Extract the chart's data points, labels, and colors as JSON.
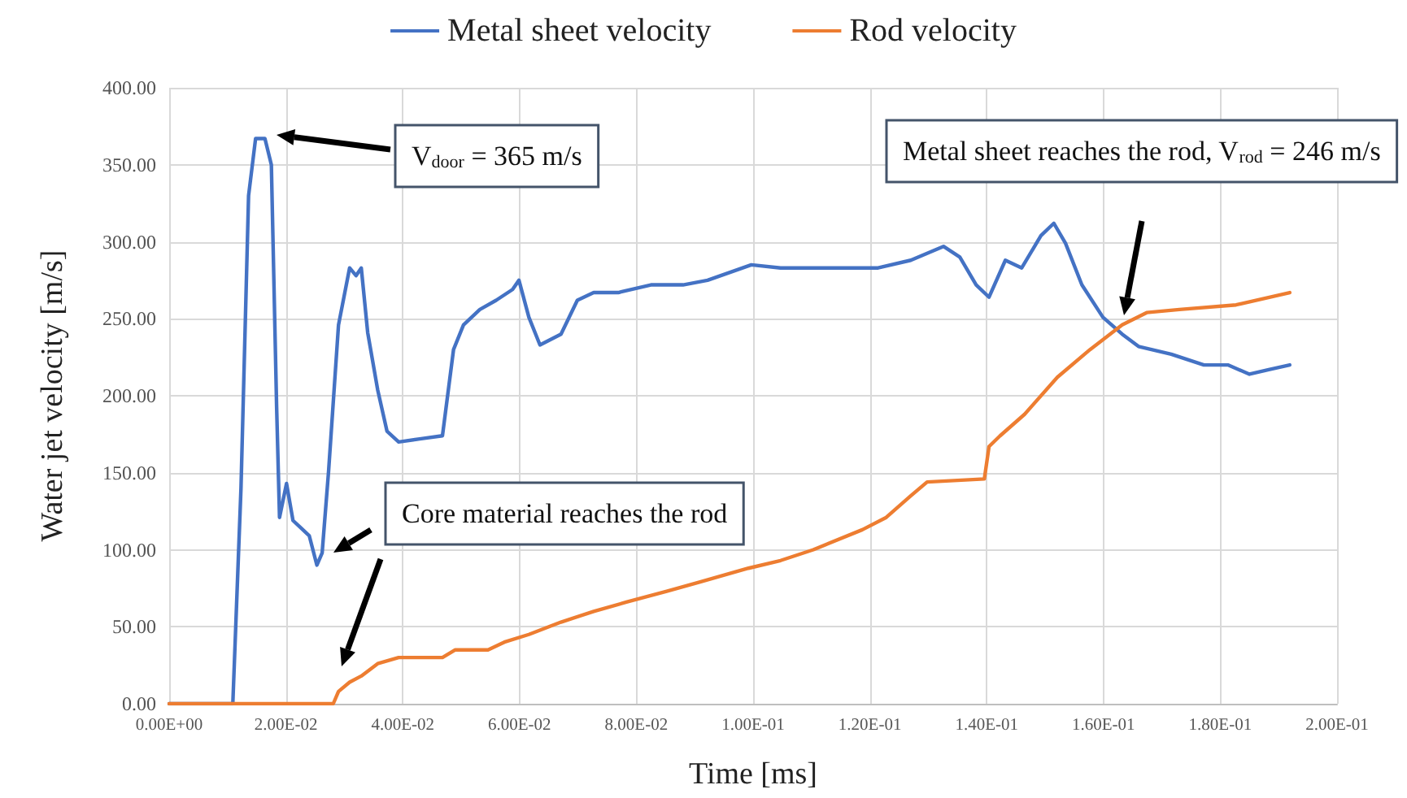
{
  "chart_data": {
    "type": "line",
    "xlabel": "Time [ms]",
    "ylabel": "Water jet velocity [m/s]",
    "legend": "top",
    "grid": true,
    "marker": "none",
    "line_style": "solid",
    "xlim": [
      0,
      0.2
    ],
    "xticks": [
      {
        "value": 0,
        "label": "0.00E+00"
      },
      {
        "value": 0.02,
        "label": "2.00E-02"
      },
      {
        "value": 0.04,
        "label": "4.00E-02"
      },
      {
        "value": 0.06,
        "label": "6.00E-02"
      },
      {
        "value": 0.08,
        "label": "8.00E-02"
      },
      {
        "value": 0.1,
        "label": "1.00E-01"
      },
      {
        "value": 0.12,
        "label": "1.20E-01"
      },
      {
        "value": 0.14,
        "label": "1.40E-01"
      },
      {
        "value": 0.16,
        "label": "1.60E-01"
      },
      {
        "value": 0.18,
        "label": "1.80E-01"
      },
      {
        "value": 0.2,
        "label": "2.00E-01"
      }
    ],
    "ylim": [
      0,
      400
    ],
    "yticks": [
      {
        "value": 0,
        "label": "0.00"
      },
      {
        "value": 50,
        "label": "50.00"
      },
      {
        "value": 100,
        "label": "100.00"
      },
      {
        "value": 150,
        "label": "150.00"
      },
      {
        "value": 200,
        "label": "200.00"
      },
      {
        "value": 250,
        "label": "250.00"
      },
      {
        "value": 300,
        "label": "300.00"
      },
      {
        "value": 350,
        "label": "350.00"
      },
      {
        "value": 400,
        "label": "400.00"
      }
    ],
    "series": [
      {
        "name": "Metal sheet velocity",
        "color": "#4472c4",
        "x": [
          0,
          0.0109,
          0.0123,
          0.0136,
          0.0148,
          0.0164,
          0.0175,
          0.0184,
          0.0189,
          0.0201,
          0.0212,
          0.0226,
          0.024,
          0.0253,
          0.0262,
          0.0273,
          0.029,
          0.0309,
          0.032,
          0.0329,
          0.034,
          0.0357,
          0.0373,
          0.0393,
          0.0429,
          0.0468,
          0.0487,
          0.0504,
          0.0532,
          0.056,
          0.0588,
          0.0599,
          0.0616,
          0.0635,
          0.0671,
          0.0699,
          0.0727,
          0.0769,
          0.0825,
          0.088,
          0.0922,
          0.0997,
          0.1047,
          0.1131,
          0.1214,
          0.127,
          0.1326,
          0.1354,
          0.1382,
          0.1404,
          0.1432,
          0.146,
          0.1493,
          0.1515,
          0.1535,
          0.1563,
          0.1599,
          0.1632,
          0.166,
          0.1716,
          0.1772,
          0.1813,
          0.185,
          0.1883,
          0.1919
        ],
        "values": [
          0,
          0,
          140,
          330,
          367,
          367,
          350,
          193,
          121,
          143,
          119,
          114,
          109,
          90,
          98,
          151,
          246,
          283,
          278,
          283,
          241,
          204,
          177,
          170,
          172,
          174,
          230,
          246,
          256,
          262,
          269,
          275,
          251,
          233,
          240,
          262,
          267,
          267,
          272,
          272,
          275,
          285,
          283,
          283,
          283,
          288,
          297,
          290,
          272,
          264,
          288,
          283,
          304,
          312,
          299,
          272,
          251,
          240,
          232,
          227,
          220,
          220,
          214,
          217,
          220
        ]
      },
      {
        "name": "Rod velocity",
        "color": "#ed7d31",
        "x": [
          0,
          0.0281,
          0.029,
          0.0309,
          0.0329,
          0.0357,
          0.0393,
          0.0468,
          0.049,
          0.0546,
          0.0574,
          0.0616,
          0.0671,
          0.0727,
          0.0783,
          0.0852,
          0.0908,
          0.0992,
          0.1047,
          0.1103,
          0.1187,
          0.1228,
          0.127,
          0.1298,
          0.1396,
          0.1404,
          0.1423,
          0.1465,
          0.1521,
          0.1577,
          0.1632,
          0.1674,
          0.173,
          0.1827,
          0.1919
        ],
        "values": [
          0,
          0,
          8,
          14,
          18,
          26,
          30,
          30,
          35,
          35,
          40,
          45,
          53,
          60,
          66,
          73,
          79,
          88,
          93,
          100,
          113,
          121,
          135,
          144,
          146,
          167,
          174,
          188,
          212,
          230,
          246,
          254,
          256,
          259,
          267
        ]
      }
    ],
    "annotations": [
      "V$_{door}$ = 365 m/s",
      "Core material reaches the rod",
      "Metal sheet reaches the rod, V$_{rod}$ = 246 m/s"
    ]
  }
}
